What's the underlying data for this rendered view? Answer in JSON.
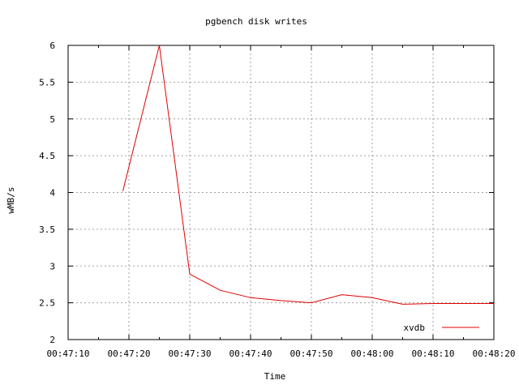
{
  "chart_data": {
    "type": "line",
    "title": "pgbench disk writes",
    "xlabel": "Time",
    "ylabel": "wMB/s",
    "x_ticks": [
      "00:47:10",
      "00:47:20",
      "00:47:30",
      "00:47:40",
      "00:47:50",
      "00:48:00",
      "00:48:10",
      "00:48:20"
    ],
    "y_ticks": [
      "2",
      "2.5",
      "3",
      "3.5",
      "4",
      "4.5",
      "5",
      "5.5",
      "6"
    ],
    "xlim": [
      "00:47:10",
      "00:48:20"
    ],
    "ylim": [
      2,
      6
    ],
    "grid": true,
    "legend_position": "bottom-right",
    "series": [
      {
        "name": "xvdb",
        "color": "#e00000",
        "points": [
          {
            "x": "00:47:19",
            "y": 4.02
          },
          {
            "x": "00:47:25",
            "y": 6.0
          },
          {
            "x": "00:47:30",
            "y": 2.89
          },
          {
            "x": "00:47:35",
            "y": 2.67
          },
          {
            "x": "00:47:40",
            "y": 2.57
          },
          {
            "x": "00:47:45",
            "y": 2.53
          },
          {
            "x": "00:47:50",
            "y": 2.5
          },
          {
            "x": "00:47:55",
            "y": 2.61
          },
          {
            "x": "00:48:00",
            "y": 2.57
          },
          {
            "x": "00:48:05",
            "y": 2.48
          },
          {
            "x": "00:48:10",
            "y": 2.49
          },
          {
            "x": "00:48:15",
            "y": 2.49
          },
          {
            "x": "00:48:20",
            "y": 2.49
          }
        ]
      }
    ]
  }
}
